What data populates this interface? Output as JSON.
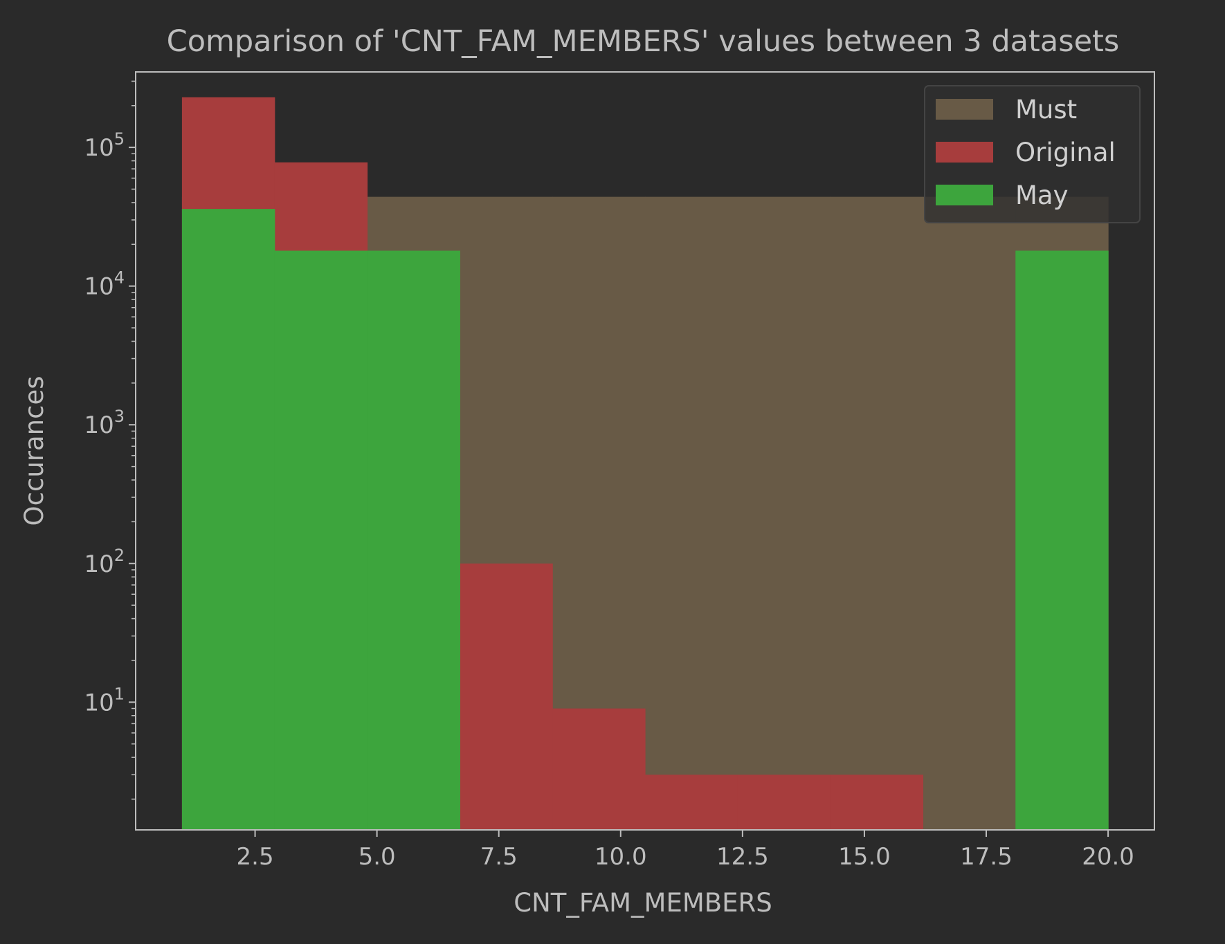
{
  "chart_data": {
    "type": "bar",
    "title": "Comparison of 'CNT_FAM_MEMBERS' values between 3 datasets",
    "xlabel": "CNT_FAM_MEMBERS",
    "ylabel": "Occurances",
    "xlim": [
      0.05,
      20.95
    ],
    "ylim": [
      1.2,
      350000
    ],
    "yscale": "log",
    "x_ticks": [
      "2.5",
      "5.0",
      "7.5",
      "10.0",
      "12.5",
      "15.0",
      "17.5",
      "20.0"
    ],
    "y_ticks": [
      {
        "base": "10",
        "exp": "1"
      },
      {
        "base": "10",
        "exp": "2"
      },
      {
        "base": "10",
        "exp": "3"
      },
      {
        "base": "10",
        "exp": "4"
      },
      {
        "base": "10",
        "exp": "5"
      }
    ],
    "bin_edges": [
      1.0,
      2.9,
      4.8,
      6.7,
      8.6,
      10.5,
      12.4,
      14.3,
      16.2,
      18.1,
      20.0
    ],
    "series": [
      {
        "name": "Must",
        "color": "#685a46",
        "values": [
          44000,
          44000,
          44000,
          44000,
          44000,
          44000,
          44000,
          44000,
          44000,
          44000
        ]
      },
      {
        "name": "Original",
        "color": "#a73d3d",
        "values": [
          230000,
          78000,
          18000,
          100,
          9,
          3,
          3,
          3,
          0,
          0
        ]
      },
      {
        "name": "May",
        "color": "#3da53d",
        "values": [
          36000,
          18000,
          18000,
          0,
          0,
          0,
          0,
          0,
          0,
          18000
        ]
      }
    ],
    "grid": false,
    "legend": "top-right"
  }
}
